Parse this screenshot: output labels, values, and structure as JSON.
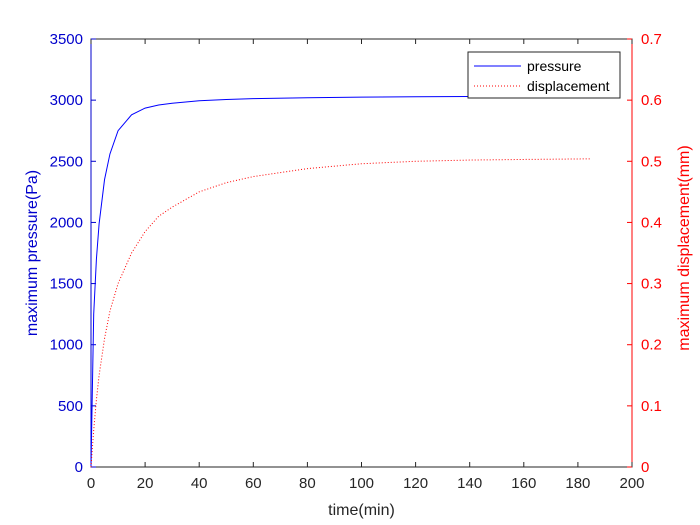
{
  "chart_data": {
    "type": "line",
    "title": "",
    "xlabel": "time(min)",
    "ylabel_left": "maximum pressure(Pa)",
    "ylabel_right": "maximum displacement(mm)",
    "xlim": [
      0,
      200
    ],
    "ylim_left": [
      0,
      3500
    ],
    "ylim_right": [
      0,
      0.7
    ],
    "x_ticks": [
      "0",
      "20",
      "40",
      "60",
      "80",
      "100",
      "120",
      "140",
      "160",
      "180",
      "200"
    ],
    "y_left_ticks": [
      "0",
      "500",
      "1000",
      "1500",
      "2000",
      "2500",
      "3000",
      "3500"
    ],
    "y_right_ticks": [
      "0",
      "0.1",
      "0.2",
      "0.3",
      "0.4",
      "0.5",
      "0.6",
      "0.7"
    ],
    "grid": false,
    "legend_position": "top-right",
    "colors": {
      "left_axis": "#0000cc",
      "right_axis": "#ff0000",
      "pressure": "#0000ff",
      "displacement": "#ff0000"
    },
    "series": [
      {
        "name": "pressure",
        "axis": "left",
        "style": "solid",
        "x": [
          0,
          1,
          2,
          3,
          5,
          7,
          10,
          15,
          20,
          25,
          30,
          40,
          50,
          60,
          80,
          100,
          120,
          140,
          145
        ],
        "y": [
          0,
          1250,
          1700,
          1990,
          2350,
          2560,
          2750,
          2880,
          2935,
          2960,
          2975,
          2995,
          3005,
          3012,
          3020,
          3025,
          3028,
          3030,
          3030
        ]
      },
      {
        "name": "displacement",
        "axis": "right",
        "style": "dotted",
        "x": [
          0,
          1,
          2,
          3,
          5,
          7,
          10,
          15,
          20,
          25,
          30,
          40,
          50,
          60,
          80,
          100,
          120,
          140,
          160,
          185
        ],
        "y": [
          0,
          0.06,
          0.11,
          0.15,
          0.21,
          0.255,
          0.3,
          0.35,
          0.385,
          0.41,
          0.425,
          0.45,
          0.465,
          0.475,
          0.488,
          0.496,
          0.5,
          0.502,
          0.503,
          0.504
        ]
      }
    ]
  }
}
